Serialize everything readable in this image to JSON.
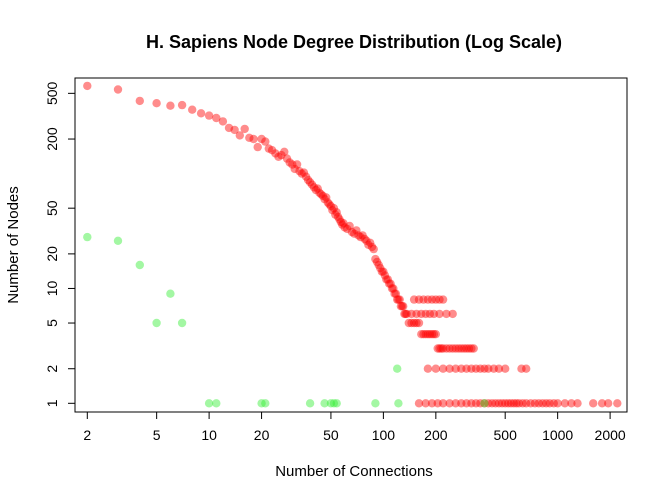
{
  "chart_data": {
    "type": "scatter",
    "title": "H. Sapiens Node Degree Distribution (Log Scale)",
    "xlabel": "Number of Connections",
    "ylabel": "Number of Nodes",
    "x_scale": "log",
    "y_scale": "log",
    "xlim": [
      1.7,
      2500
    ],
    "ylim": [
      0.84,
      680
    ],
    "x_ticks": [
      2,
      5,
      10,
      20,
      50,
      100,
      200,
      500,
      1000,
      2000
    ],
    "x_tick_labels": [
      "2",
      "5",
      "10",
      "20",
      "50",
      "100",
      "200",
      "500",
      "1000",
      "2000"
    ],
    "y_ticks": [
      1,
      2,
      5,
      10,
      20,
      50,
      200,
      500
    ],
    "y_tick_labels": [
      "1",
      "2",
      "5",
      "10",
      "20",
      "50",
      "200",
      "500"
    ],
    "grid": false,
    "series": [
      {
        "color": "#ff0000",
        "points": [
          [
            2,
            580
          ],
          [
            3,
            540
          ],
          [
            4,
            430
          ],
          [
            5,
            410
          ],
          [
            6,
            390
          ],
          [
            7,
            395
          ],
          [
            8,
            360
          ],
          [
            9,
            335
          ],
          [
            10,
            320
          ],
          [
            11,
            305
          ],
          [
            12,
            285
          ],
          [
            13,
            250
          ],
          [
            14,
            240
          ],
          [
            15,
            215
          ],
          [
            16,
            245
          ],
          [
            17,
            205
          ],
          [
            18,
            200
          ],
          [
            19,
            170
          ],
          [
            20,
            200
          ],
          [
            21,
            190
          ],
          [
            22,
            165
          ],
          [
            23,
            160
          ],
          [
            24,
            150
          ],
          [
            25,
            140
          ],
          [
            26,
            145
          ],
          [
            27,
            155
          ],
          [
            28,
            135
          ],
          [
            29,
            125
          ],
          [
            30,
            120
          ],
          [
            31,
            110
          ],
          [
            32,
            120
          ],
          [
            33,
            105
          ],
          [
            34,
            100
          ],
          [
            35,
            102
          ],
          [
            36,
            94
          ],
          [
            37,
            88
          ],
          [
            38,
            84
          ],
          [
            39,
            80
          ],
          [
            40,
            76
          ],
          [
            41,
            72
          ],
          [
            42,
            74
          ],
          [
            43,
            68
          ],
          [
            44,
            66
          ],
          [
            45,
            64
          ],
          [
            46,
            60
          ],
          [
            47,
            62
          ],
          [
            48,
            56
          ],
          [
            49,
            54
          ],
          [
            50,
            52
          ],
          [
            51,
            48
          ],
          [
            52,
            50
          ],
          [
            53,
            44
          ],
          [
            54,
            46
          ],
          [
            55,
            42
          ],
          [
            56,
            40
          ],
          [
            57,
            38
          ],
          [
            58,
            36
          ],
          [
            59,
            37
          ],
          [
            60,
            34
          ],
          [
            62,
            33
          ],
          [
            64,
            35
          ],
          [
            66,
            31
          ],
          [
            68,
            30
          ],
          [
            70,
            32
          ],
          [
            72,
            29
          ],
          [
            74,
            28
          ],
          [
            76,
            29
          ],
          [
            78,
            27
          ],
          [
            80,
            26
          ],
          [
            82,
            24
          ],
          [
            84,
            25
          ],
          [
            86,
            23
          ],
          [
            88,
            22
          ],
          [
            90,
            18
          ],
          [
            92,
            17
          ],
          [
            94,
            16
          ],
          [
            96,
            15
          ],
          [
            98,
            14
          ],
          [
            100,
            14
          ],
          [
            102,
            13
          ],
          [
            104,
            12
          ],
          [
            106,
            12
          ],
          [
            108,
            11
          ],
          [
            110,
            11
          ],
          [
            112,
            10
          ],
          [
            114,
            10
          ],
          [
            116,
            9
          ],
          [
            118,
            9
          ],
          [
            120,
            8
          ],
          [
            122,
            8
          ],
          [
            124,
            8
          ],
          [
            126,
            7
          ],
          [
            128,
            7
          ],
          [
            130,
            7
          ],
          [
            132,
            6
          ],
          [
            134,
            6
          ],
          [
            136,
            6
          ],
          [
            140,
            5
          ],
          [
            145,
            5
          ],
          [
            150,
            5
          ],
          [
            155,
            5
          ],
          [
            160,
            5
          ],
          [
            165,
            4
          ],
          [
            170,
            4
          ],
          [
            175,
            4
          ],
          [
            180,
            4
          ],
          [
            185,
            4
          ],
          [
            190,
            4
          ],
          [
            195,
            4
          ],
          [
            200,
            4
          ],
          [
            205,
            3
          ],
          [
            210,
            3
          ],
          [
            215,
            3
          ],
          [
            220,
            3
          ],
          [
            230,
            3
          ],
          [
            240,
            3
          ],
          [
            250,
            3
          ],
          [
            260,
            3
          ],
          [
            270,
            3
          ],
          [
            280,
            3
          ],
          [
            290,
            3
          ],
          [
            300,
            3
          ],
          [
            310,
            3
          ],
          [
            320,
            3
          ],
          [
            330,
            3
          ],
          [
            180,
            2
          ],
          [
            200,
            2
          ],
          [
            220,
            2
          ],
          [
            240,
            2
          ],
          [
            260,
            2
          ],
          [
            280,
            2
          ],
          [
            300,
            2
          ],
          [
            320,
            2
          ],
          [
            340,
            2
          ],
          [
            360,
            2
          ],
          [
            380,
            2
          ],
          [
            400,
            2
          ],
          [
            430,
            2
          ],
          [
            460,
            2
          ],
          [
            500,
            2
          ],
          [
            620,
            2
          ],
          [
            660,
            2
          ],
          [
            160,
            1
          ],
          [
            175,
            1
          ],
          [
            190,
            1
          ],
          [
            205,
            1
          ],
          [
            220,
            1
          ],
          [
            240,
            1
          ],
          [
            260,
            1
          ],
          [
            280,
            1
          ],
          [
            300,
            1
          ],
          [
            320,
            1
          ],
          [
            340,
            1
          ],
          [
            360,
            1
          ],
          [
            380,
            1
          ],
          [
            400,
            1
          ],
          [
            420,
            1
          ],
          [
            440,
            1
          ],
          [
            460,
            1
          ],
          [
            480,
            1
          ],
          [
            500,
            1
          ],
          [
            520,
            1
          ],
          [
            540,
            1
          ],
          [
            560,
            1
          ],
          [
            580,
            1
          ],
          [
            600,
            1
          ],
          [
            630,
            1
          ],
          [
            660,
            1
          ],
          [
            700,
            1
          ],
          [
            740,
            1
          ],
          [
            780,
            1
          ],
          [
            820,
            1
          ],
          [
            860,
            1
          ],
          [
            900,
            1
          ],
          [
            950,
            1
          ],
          [
            1000,
            1
          ],
          [
            1100,
            1
          ],
          [
            1200,
            1
          ],
          [
            1300,
            1
          ],
          [
            1600,
            1
          ],
          [
            1800,
            1
          ],
          [
            1950,
            1
          ],
          [
            2200,
            1
          ],
          [
            150,
            8
          ],
          [
            160,
            8
          ],
          [
            170,
            8
          ],
          [
            180,
            8
          ],
          [
            190,
            8
          ],
          [
            200,
            8
          ],
          [
            210,
            8
          ],
          [
            220,
            8
          ],
          [
            145,
            6
          ],
          [
            155,
            6
          ],
          [
            165,
            6
          ],
          [
            175,
            6
          ],
          [
            185,
            6
          ],
          [
            195,
            6
          ],
          [
            210,
            6
          ],
          [
            230,
            6
          ],
          [
            250,
            6
          ]
        ]
      },
      {
        "color": "#33ee33",
        "points": [
          [
            2,
            28
          ],
          [
            3,
            26
          ],
          [
            4,
            16
          ],
          [
            5,
            5
          ],
          [
            6,
            9
          ],
          [
            7,
            5
          ],
          [
            10,
            1
          ],
          [
            11,
            1
          ],
          [
            20,
            1
          ],
          [
            21,
            1
          ],
          [
            38,
            1
          ],
          [
            46,
            1
          ],
          [
            50,
            1
          ],
          [
            52,
            1
          ],
          [
            54,
            1
          ],
          [
            90,
            1
          ],
          [
            120,
            2
          ],
          [
            122,
            1
          ],
          [
            380,
            1
          ]
        ]
      }
    ]
  }
}
